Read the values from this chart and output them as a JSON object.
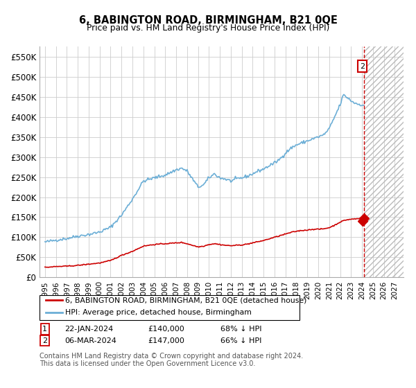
{
  "title": "6, BABINGTON ROAD, BIRMINGHAM, B21 0QE",
  "subtitle": "Price paid vs. HM Land Registry's House Price Index (HPI)",
  "hpi_label": "HPI: Average price, detached house, Birmingham",
  "price_label": "6, BABINGTON ROAD, BIRMINGHAM, B21 0QE (detached house)",
  "hpi_color": "#6baed6",
  "price_color": "#cc0000",
  "background_color": "#ffffff",
  "grid_color": "#cccccc",
  "ylim": [
    0,
    575000
  ],
  "yticks": [
    0,
    50000,
    100000,
    150000,
    200000,
    250000,
    300000,
    350000,
    400000,
    450000,
    500000,
    550000
  ],
  "ytick_labels": [
    "£0",
    "£50K",
    "£100K",
    "£150K",
    "£200K",
    "£250K",
    "£300K",
    "£350K",
    "£400K",
    "£450K",
    "£500K",
    "£550K"
  ],
  "xlim_start": 1994.5,
  "xlim_end": 2027.8,
  "xticks": [
    1995,
    1996,
    1997,
    1998,
    1999,
    2000,
    2001,
    2002,
    2003,
    2004,
    2005,
    2006,
    2007,
    2008,
    2009,
    2010,
    2011,
    2012,
    2013,
    2014,
    2015,
    2016,
    2017,
    2018,
    2019,
    2020,
    2021,
    2022,
    2023,
    2024,
    2025,
    2026,
    2027
  ],
  "sale1_date": 2024.055,
  "sale1_price": 140000,
  "sale2_date": 2024.18,
  "sale2_price": 147000,
  "dashed_x": 2024.18,
  "footer_text": "Contains HM Land Registry data © Crown copyright and database right 2024.\nThis data is licensed under the Open Government Licence v3.0.",
  "note1_date": "22-JAN-2024",
  "note1_price": "£140,000",
  "note1_hpi": "68% ↓ HPI",
  "note2_date": "06-MAR-2024",
  "note2_price": "£147,000",
  "note2_hpi": "66% ↓ HPI",
  "hpi_anchors": [
    [
      1995.0,
      88000
    ],
    [
      1996.0,
      93000
    ],
    [
      1997.0,
      97000
    ],
    [
      1998.0,
      103000
    ],
    [
      1999.0,
      107000
    ],
    [
      2000.0,
      113000
    ],
    [
      2001.0,
      125000
    ],
    [
      2002.0,
      155000
    ],
    [
      2003.0,
      195000
    ],
    [
      2004.0,
      240000
    ],
    [
      2005.0,
      248000
    ],
    [
      2006.0,
      255000
    ],
    [
      2007.0,
      268000
    ],
    [
      2007.5,
      272000
    ],
    [
      2008.0,
      265000
    ],
    [
      2008.5,
      245000
    ],
    [
      2009.0,
      225000
    ],
    [
      2009.5,
      230000
    ],
    [
      2010.0,
      248000
    ],
    [
      2010.5,
      258000
    ],
    [
      2011.0,
      248000
    ],
    [
      2011.5,
      245000
    ],
    [
      2012.0,
      240000
    ],
    [
      2012.5,
      245000
    ],
    [
      2013.0,
      248000
    ],
    [
      2013.5,
      252000
    ],
    [
      2014.0,
      258000
    ],
    [
      2014.5,
      265000
    ],
    [
      2015.0,
      270000
    ],
    [
      2015.5,
      278000
    ],
    [
      2016.0,
      285000
    ],
    [
      2016.5,
      295000
    ],
    [
      2017.0,
      310000
    ],
    [
      2017.5,
      322000
    ],
    [
      2018.0,
      330000
    ],
    [
      2018.5,
      335000
    ],
    [
      2019.0,
      340000
    ],
    [
      2019.5,
      345000
    ],
    [
      2020.0,
      350000
    ],
    [
      2020.5,
      355000
    ],
    [
      2021.0,
      370000
    ],
    [
      2021.5,
      400000
    ],
    [
      2022.0,
      430000
    ],
    [
      2022.3,
      455000
    ],
    [
      2022.8,
      445000
    ],
    [
      2023.0,
      440000
    ],
    [
      2023.3,
      435000
    ],
    [
      2023.6,
      432000
    ],
    [
      2024.0,
      430000
    ],
    [
      2024.2,
      428000
    ]
  ],
  "price_anchors": [
    [
      1995.0,
      25000
    ],
    [
      1996.0,
      27000
    ],
    [
      1997.0,
      28000
    ],
    [
      1998.0,
      30000
    ],
    [
      1999.0,
      33000
    ],
    [
      2000.0,
      36000
    ],
    [
      2001.0,
      42000
    ],
    [
      2002.0,
      55000
    ],
    [
      2003.0,
      65000
    ],
    [
      2004.0,
      78000
    ],
    [
      2005.0,
      82000
    ],
    [
      2006.0,
      84000
    ],
    [
      2007.0,
      86000
    ],
    [
      2007.5,
      87000
    ],
    [
      2008.0,
      84000
    ],
    [
      2008.5,
      80000
    ],
    [
      2009.0,
      76000
    ],
    [
      2009.5,
      78000
    ],
    [
      2010.0,
      82000
    ],
    [
      2010.5,
      84000
    ],
    [
      2011.0,
      82000
    ],
    [
      2011.5,
      80000
    ],
    [
      2012.0,
      79000
    ],
    [
      2012.5,
      80000
    ],
    [
      2013.0,
      81000
    ],
    [
      2013.5,
      83000
    ],
    [
      2014.0,
      86000
    ],
    [
      2014.5,
      89000
    ],
    [
      2015.0,
      92000
    ],
    [
      2015.5,
      96000
    ],
    [
      2016.0,
      100000
    ],
    [
      2016.5,
      104000
    ],
    [
      2017.0,
      108000
    ],
    [
      2017.5,
      112000
    ],
    [
      2018.0,
      115000
    ],
    [
      2018.5,
      117000
    ],
    [
      2019.0,
      118000
    ],
    [
      2019.5,
      120000
    ],
    [
      2020.0,
      120000
    ],
    [
      2020.5,
      121000
    ],
    [
      2021.0,
      124000
    ],
    [
      2021.5,
      130000
    ],
    [
      2022.0,
      138000
    ],
    [
      2022.5,
      143000
    ],
    [
      2023.0,
      145000
    ],
    [
      2023.5,
      146000
    ],
    [
      2024.0,
      147000
    ],
    [
      2024.2,
      147000
    ]
  ]
}
